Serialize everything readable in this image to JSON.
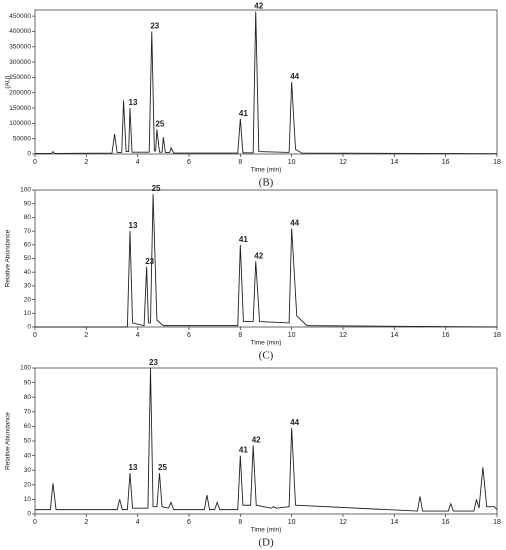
{
  "chart_data": [
    {
      "type": "line",
      "caption": "(B)",
      "xlabel": "Time (min)",
      "ylabel": "(AU)",
      "color": "#222222",
      "xlim": [
        0,
        18
      ],
      "xticks": [
        0,
        2,
        4,
        6,
        8,
        10,
        12,
        14,
        16,
        18
      ],
      "ylim": [
        0,
        470000
      ],
      "yticks": [
        0,
        50000,
        100000,
        150000,
        200000,
        250000,
        300000,
        350000,
        400000,
        450000
      ],
      "x": [
        0,
        0.65,
        0.7,
        0.75,
        3.0,
        3.1,
        3.2,
        3.38,
        3.45,
        3.55,
        3.65,
        3.7,
        3.78,
        4.45,
        4.55,
        4.65,
        4.7,
        4.75,
        4.85,
        4.95,
        5.0,
        5.08,
        5.25,
        5.3,
        5.4,
        7.9,
        8.0,
        8.1,
        8.5,
        8.6,
        8.72,
        9.9,
        10.0,
        10.15,
        10.4,
        18
      ],
      "values": [
        2000,
        2000,
        8000,
        2000,
        3000,
        65000,
        5000,
        5000,
        175000,
        8000,
        8000,
        150000,
        6000,
        6000,
        400000,
        10000,
        10000,
        80000,
        6000,
        6000,
        55000,
        5000,
        5000,
        20000,
        3000,
        3000,
        115000,
        4000,
        4000,
        465000,
        8000,
        5000,
        235000,
        15000,
        3000,
        1000
      ],
      "annotations": [
        {
          "text": "13",
          "x": 3.7
        },
        {
          "text": "23",
          "x": 4.55
        },
        {
          "text": "25",
          "x": 4.75
        },
        {
          "text": "41",
          "x": 8.0
        },
        {
          "text": "42",
          "x": 8.6
        },
        {
          "text": "44",
          "x": 10.0
        }
      ]
    },
    {
      "type": "line",
      "caption": "(C)",
      "xlabel": "Time (min)",
      "ylabel": "Relative Abundance",
      "color": "#222222",
      "xlim": [
        0,
        18
      ],
      "xticks": [
        0,
        2,
        4,
        6,
        8,
        10,
        12,
        14,
        16,
        18
      ],
      "ylim": [
        0,
        100
      ],
      "yticks": [
        0,
        10,
        20,
        30,
        40,
        50,
        60,
        70,
        80,
        90,
        100
      ],
      "x": [
        0,
        3.6,
        3.7,
        3.8,
        4.25,
        4.35,
        4.42,
        4.5,
        4.6,
        4.75,
        5.0,
        7.9,
        8.0,
        8.12,
        8.5,
        8.6,
        8.75,
        9.9,
        10.0,
        10.2,
        10.6,
        18
      ],
      "values": [
        0,
        0,
        70,
        3,
        1,
        44,
        3,
        3,
        97,
        5,
        1,
        1,
        60,
        4,
        4,
        48,
        4,
        3,
        72,
        8,
        1,
        0
      ],
      "annotations": [
        {
          "text": "13",
          "x": 3.7
        },
        {
          "text": "23",
          "x": 4.35
        },
        {
          "text": "25",
          "x": 4.6
        },
        {
          "text": "41",
          "x": 8.0
        },
        {
          "text": "42",
          "x": 8.6
        },
        {
          "text": "44",
          "x": 10.0
        }
      ]
    },
    {
      "type": "line",
      "caption": "(D)",
      "xlabel": "Time (min)",
      "ylabel": "Relative Abundance",
      "color": "#222222",
      "xlim": [
        0,
        18
      ],
      "xticks": [
        0,
        2,
        4,
        6,
        8,
        10,
        12,
        14,
        16,
        18
      ],
      "ylim": [
        0,
        100
      ],
      "yticks": [
        0,
        10,
        20,
        30,
        40,
        50,
        60,
        70,
        80,
        90,
        100
      ],
      "x": [
        0,
        0.6,
        0.7,
        0.82,
        3.2,
        3.3,
        3.4,
        3.6,
        3.7,
        3.8,
        4.4,
        4.5,
        4.6,
        4.75,
        4.85,
        4.95,
        5.2,
        5.3,
        5.4,
        6.6,
        6.7,
        6.8,
        7.0,
        7.1,
        7.2,
        7.9,
        8.0,
        8.1,
        8.4,
        8.5,
        8.62,
        9.2,
        9.3,
        9.4,
        9.9,
        10.0,
        10.15,
        14.9,
        15.0,
        15.1,
        16.1,
        16.2,
        16.3,
        17.1,
        17.2,
        17.3,
        17.45,
        17.6,
        17.9,
        18
      ],
      "values": [
        3,
        3,
        21,
        3,
        3,
        10,
        3,
        3,
        28,
        4,
        4,
        100,
        5,
        5,
        28,
        5,
        4,
        8,
        3,
        3,
        13,
        3,
        3,
        8,
        3,
        3,
        40,
        6,
        6,
        47,
        6,
        4,
        5,
        4,
        5,
        59,
        6,
        2,
        12,
        2,
        2,
        7,
        2,
        2,
        10,
        4,
        32,
        5,
        5,
        3
      ],
      "annotations": [
        {
          "text": "13",
          "x": 3.7
        },
        {
          "text": "23",
          "x": 4.5
        },
        {
          "text": "25",
          "x": 4.85
        },
        {
          "text": "41",
          "x": 8.0
        },
        {
          "text": "42",
          "x": 8.5
        },
        {
          "text": "44",
          "x": 10.0
        }
      ]
    }
  ]
}
